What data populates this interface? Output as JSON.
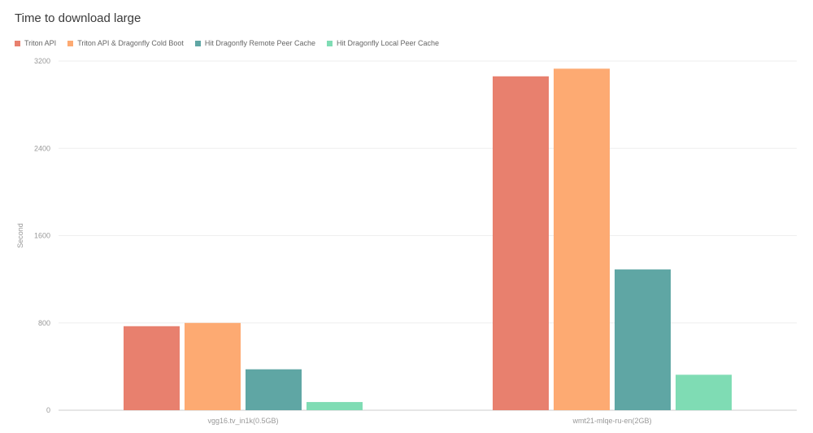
{
  "chart_data": {
    "type": "bar",
    "title": "Time to download large",
    "xlabel": "",
    "ylabel": "Second",
    "ylim": [
      0,
      3200
    ],
    "yticks": [
      0,
      800,
      1600,
      2400,
      3200
    ],
    "grid": true,
    "legend_position": "top-left",
    "categories": [
      "vgg16.tv_in1k(0.5GB)",
      "wmt21-mlqe-ru-en(2GB)"
    ],
    "series": [
      {
        "name": "Triton API",
        "color": "#e8806e",
        "values": [
          770,
          3060
        ]
      },
      {
        "name": "Triton API & Dragonfly Cold Boot",
        "color": "#fdaa72",
        "values": [
          800,
          3130
        ]
      },
      {
        "name": "Hit Dragonfly Remote Peer Cache",
        "color": "#5fa6a4",
        "values": [
          375,
          1290
        ]
      },
      {
        "name": "Hit Dragonfly Local Peer Cache",
        "color": "#7fdcb4",
        "values": [
          75,
          325
        ]
      }
    ]
  }
}
